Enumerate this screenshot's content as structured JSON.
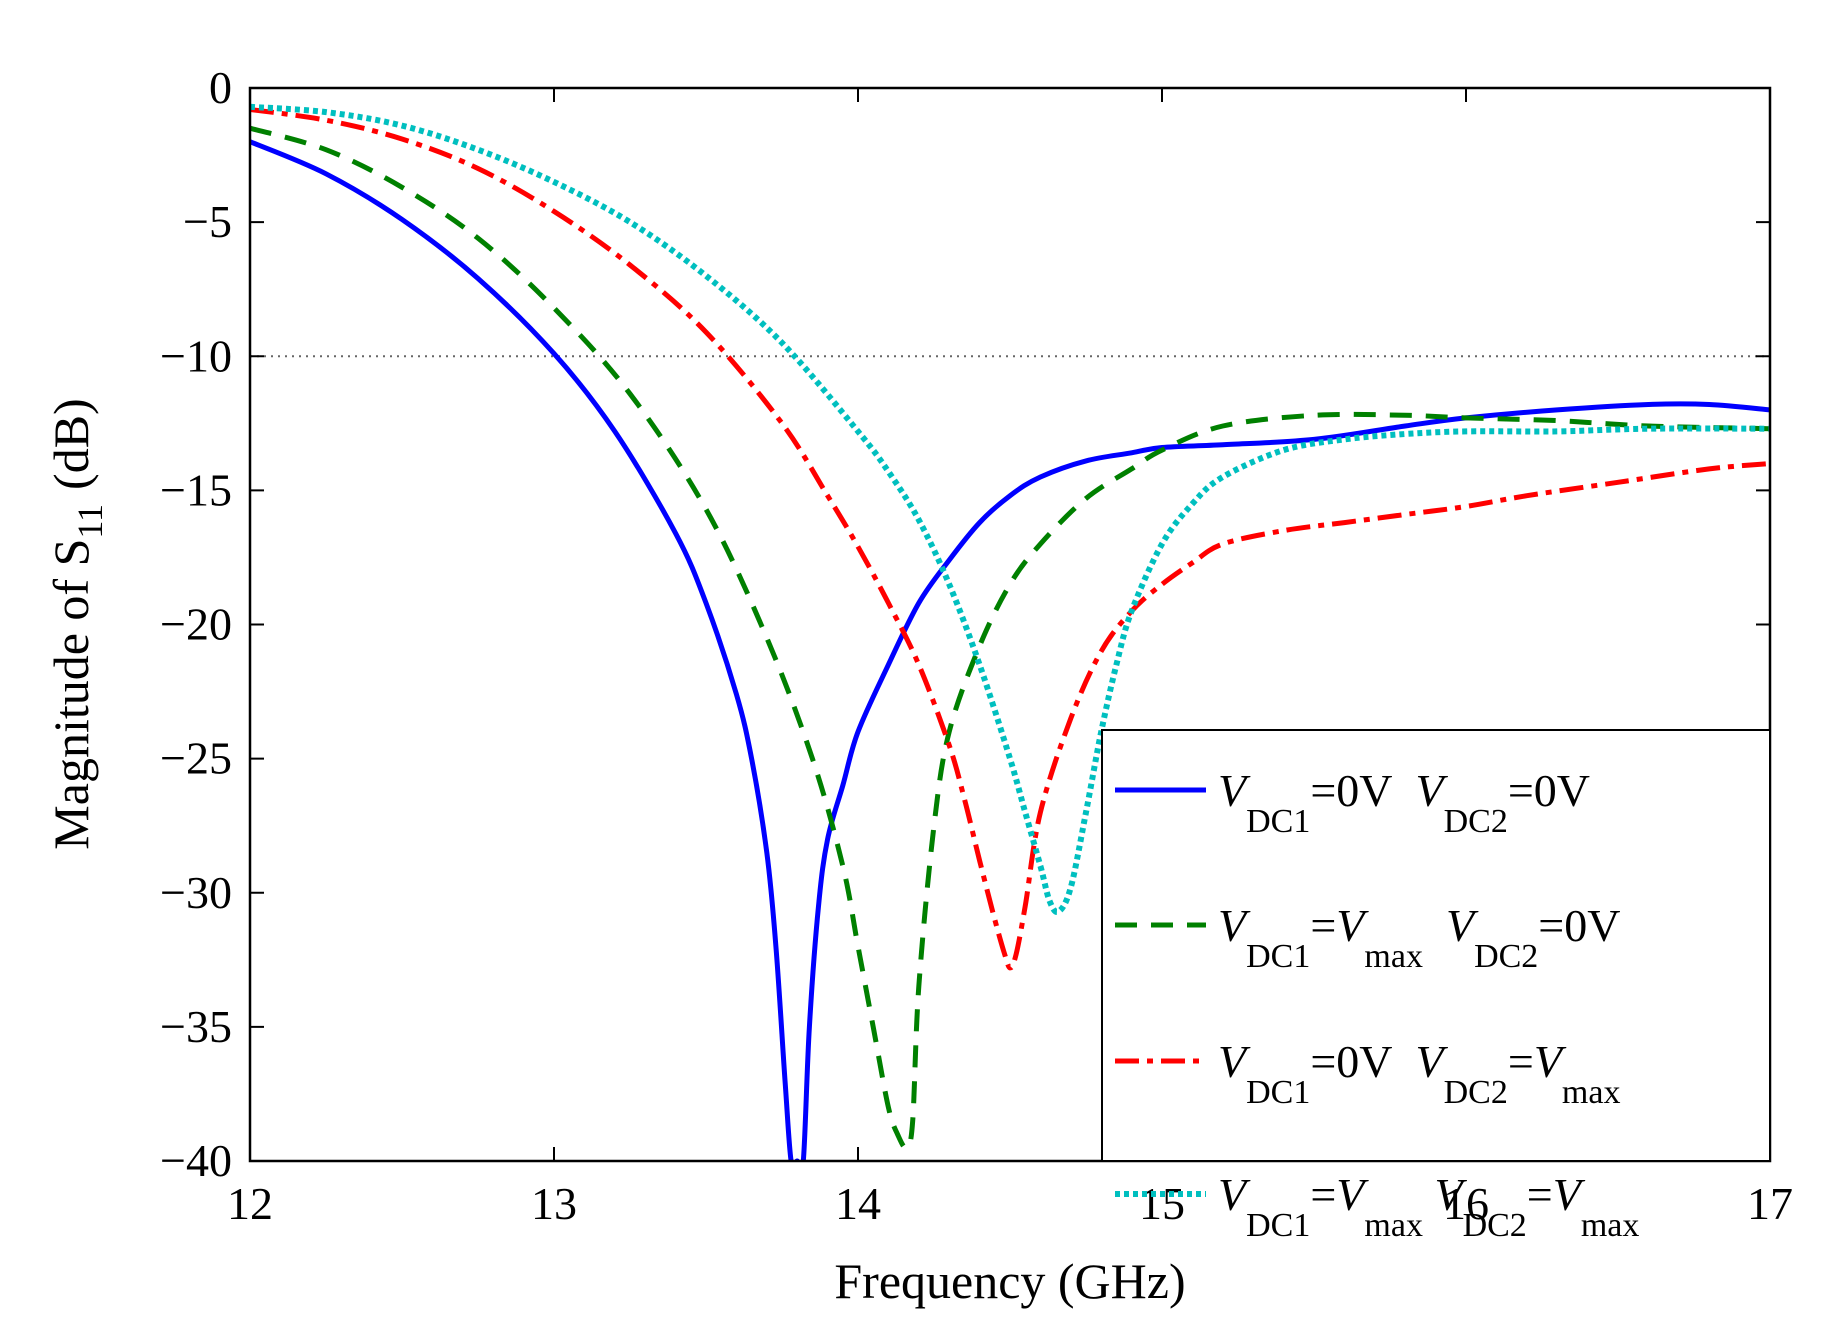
{
  "chart_data": {
    "type": "line",
    "xlabel": "Frequency (GHz)",
    "ylabel_main": "Magnitude of S",
    "ylabel_sub": "11",
    "ylabel_unit": "(dB)",
    "xlim": [
      12,
      17
    ],
    "ylim": [
      -40,
      0
    ],
    "xticks": [
      12,
      13,
      14,
      15,
      16,
      17
    ],
    "yticks": [
      0,
      -5,
      -10,
      -15,
      -20,
      -25,
      -30,
      -35,
      -40
    ],
    "ytick_labels": [
      "0",
      "−5",
      "−10",
      "−15",
      "−20",
      "−25",
      "−30",
      "−35",
      "−40"
    ],
    "reference_line": {
      "y": -10,
      "style": "dotted"
    },
    "legend_position": "bottom-right",
    "series": [
      {
        "name": "V_DC1=0V V_DC2=0V",
        "legend": [
          [
            "V",
            "DC1",
            "=0V  "
          ],
          [
            "V",
            "DC2",
            "=0V"
          ]
        ],
        "color": "#0000ff",
        "style": "solid",
        "x": [
          12.0,
          12.25,
          12.5,
          12.75,
          13.0,
          13.2,
          13.4,
          13.5,
          13.6,
          13.65,
          13.7,
          13.73,
          13.76,
          13.78,
          13.8,
          13.82,
          13.84,
          13.87,
          13.9,
          13.95,
          14.0,
          14.1,
          14.2,
          14.3,
          14.4,
          14.5,
          14.6,
          14.75,
          14.9,
          15.0,
          15.2,
          15.5,
          15.8,
          16.0,
          16.3,
          16.6,
          16.8,
          17.0
        ],
        "y": [
          -2.0,
          -3.2,
          -4.9,
          -7.1,
          -9.9,
          -12.8,
          -16.6,
          -19.2,
          -22.6,
          -25.0,
          -28.5,
          -32.0,
          -37.0,
          -40.0,
          -40.0,
          -40.0,
          -35.0,
          -30.5,
          -28.0,
          -26.0,
          -24.0,
          -21.5,
          -19.2,
          -17.6,
          -16.2,
          -15.2,
          -14.5,
          -13.9,
          -13.6,
          -13.4,
          -13.3,
          -13.1,
          -12.6,
          -12.3,
          -12.0,
          -11.8,
          -11.8,
          -12.0
        ]
      },
      {
        "name": "V_DC1=Vmax V_DC2=0V",
        "legend": [
          [
            "V",
            "DC1",
            "="
          ],
          [
            "V",
            "max",
            "  "
          ],
          [
            "V",
            "DC2",
            "=0V"
          ]
        ],
        "color": "#008000",
        "style": "dashed",
        "x": [
          12.0,
          12.25,
          12.5,
          12.75,
          13.0,
          13.25,
          13.5,
          13.7,
          13.85,
          13.95,
          14.0,
          14.05,
          14.1,
          14.13,
          14.16,
          14.18,
          14.2,
          14.25,
          14.3,
          14.4,
          14.5,
          14.6,
          14.75,
          14.9,
          15.0,
          15.2,
          15.5,
          15.8,
          16.0,
          16.3,
          16.6,
          17.0
        ],
        "y": [
          -1.5,
          -2.3,
          -3.7,
          -5.6,
          -8.2,
          -11.4,
          -15.7,
          -20.5,
          -25.0,
          -29.0,
          -32.0,
          -35.0,
          -38.0,
          -39.0,
          -39.5,
          -38.5,
          -33.5,
          -27.5,
          -24.0,
          -20.8,
          -18.5,
          -17.0,
          -15.3,
          -14.2,
          -13.5,
          -12.6,
          -12.2,
          -12.2,
          -12.3,
          -12.4,
          -12.6,
          -12.7
        ]
      },
      {
        "name": "V_DC1=0V V_DC2=Vmax",
        "legend": [
          [
            "V",
            "DC1",
            "=0V  "
          ],
          [
            "V",
            "DC2",
            "="
          ],
          [
            "V",
            "max",
            ""
          ]
        ],
        "color": "#ff0000",
        "style": "dashdot",
        "x": [
          12.0,
          12.25,
          12.5,
          12.75,
          13.0,
          13.25,
          13.5,
          13.75,
          13.9,
          14.0,
          14.1,
          14.2,
          14.3,
          14.35,
          14.4,
          14.45,
          14.48,
          14.5,
          14.52,
          14.55,
          14.6,
          14.7,
          14.8,
          14.9,
          15.0,
          15.1,
          15.2,
          15.4,
          15.6,
          15.8,
          16.0,
          16.2,
          16.5,
          16.8,
          17.0
        ],
        "y": [
          -0.8,
          -1.2,
          -1.9,
          -3.0,
          -4.6,
          -6.6,
          -9.1,
          -12.5,
          -15.2,
          -17.1,
          -19.2,
          -21.5,
          -24.5,
          -26.5,
          -28.8,
          -31.0,
          -32.2,
          -32.8,
          -32.3,
          -30.5,
          -27.0,
          -23.5,
          -21.0,
          -19.5,
          -18.5,
          -17.7,
          -17.0,
          -16.5,
          -16.2,
          -15.9,
          -15.6,
          -15.2,
          -14.7,
          -14.2,
          -14.0
        ]
      },
      {
        "name": "V_DC1=Vmax V_DC2=Vmax",
        "legend": [
          [
            "V",
            "DC1",
            "="
          ],
          [
            "V",
            "max",
            " "
          ],
          [
            "V",
            "DC2",
            "="
          ],
          [
            "V",
            "max",
            ""
          ]
        ],
        "color": "#00bfbf",
        "style": "dotted",
        "x": [
          12.0,
          12.25,
          12.5,
          12.75,
          13.0,
          13.25,
          13.5,
          13.75,
          14.0,
          14.1,
          14.2,
          14.3,
          14.4,
          14.5,
          14.55,
          14.6,
          14.63,
          14.66,
          14.7,
          14.75,
          14.8,
          14.85,
          14.9,
          15.0,
          15.1,
          15.2,
          15.4,
          15.6,
          15.8,
          16.0,
          16.3,
          16.6,
          17.0
        ],
        "y": [
          -0.7,
          -0.9,
          -1.4,
          -2.3,
          -3.5,
          -5.0,
          -7.0,
          -9.5,
          -12.8,
          -14.3,
          -16.1,
          -18.5,
          -21.5,
          -25.0,
          -27.0,
          -29.0,
          -30.3,
          -30.7,
          -29.8,
          -27.0,
          -24.0,
          -21.5,
          -19.5,
          -17.0,
          -15.5,
          -14.5,
          -13.5,
          -13.1,
          -12.9,
          -12.8,
          -12.8,
          -12.7,
          -12.7
        ]
      }
    ]
  }
}
